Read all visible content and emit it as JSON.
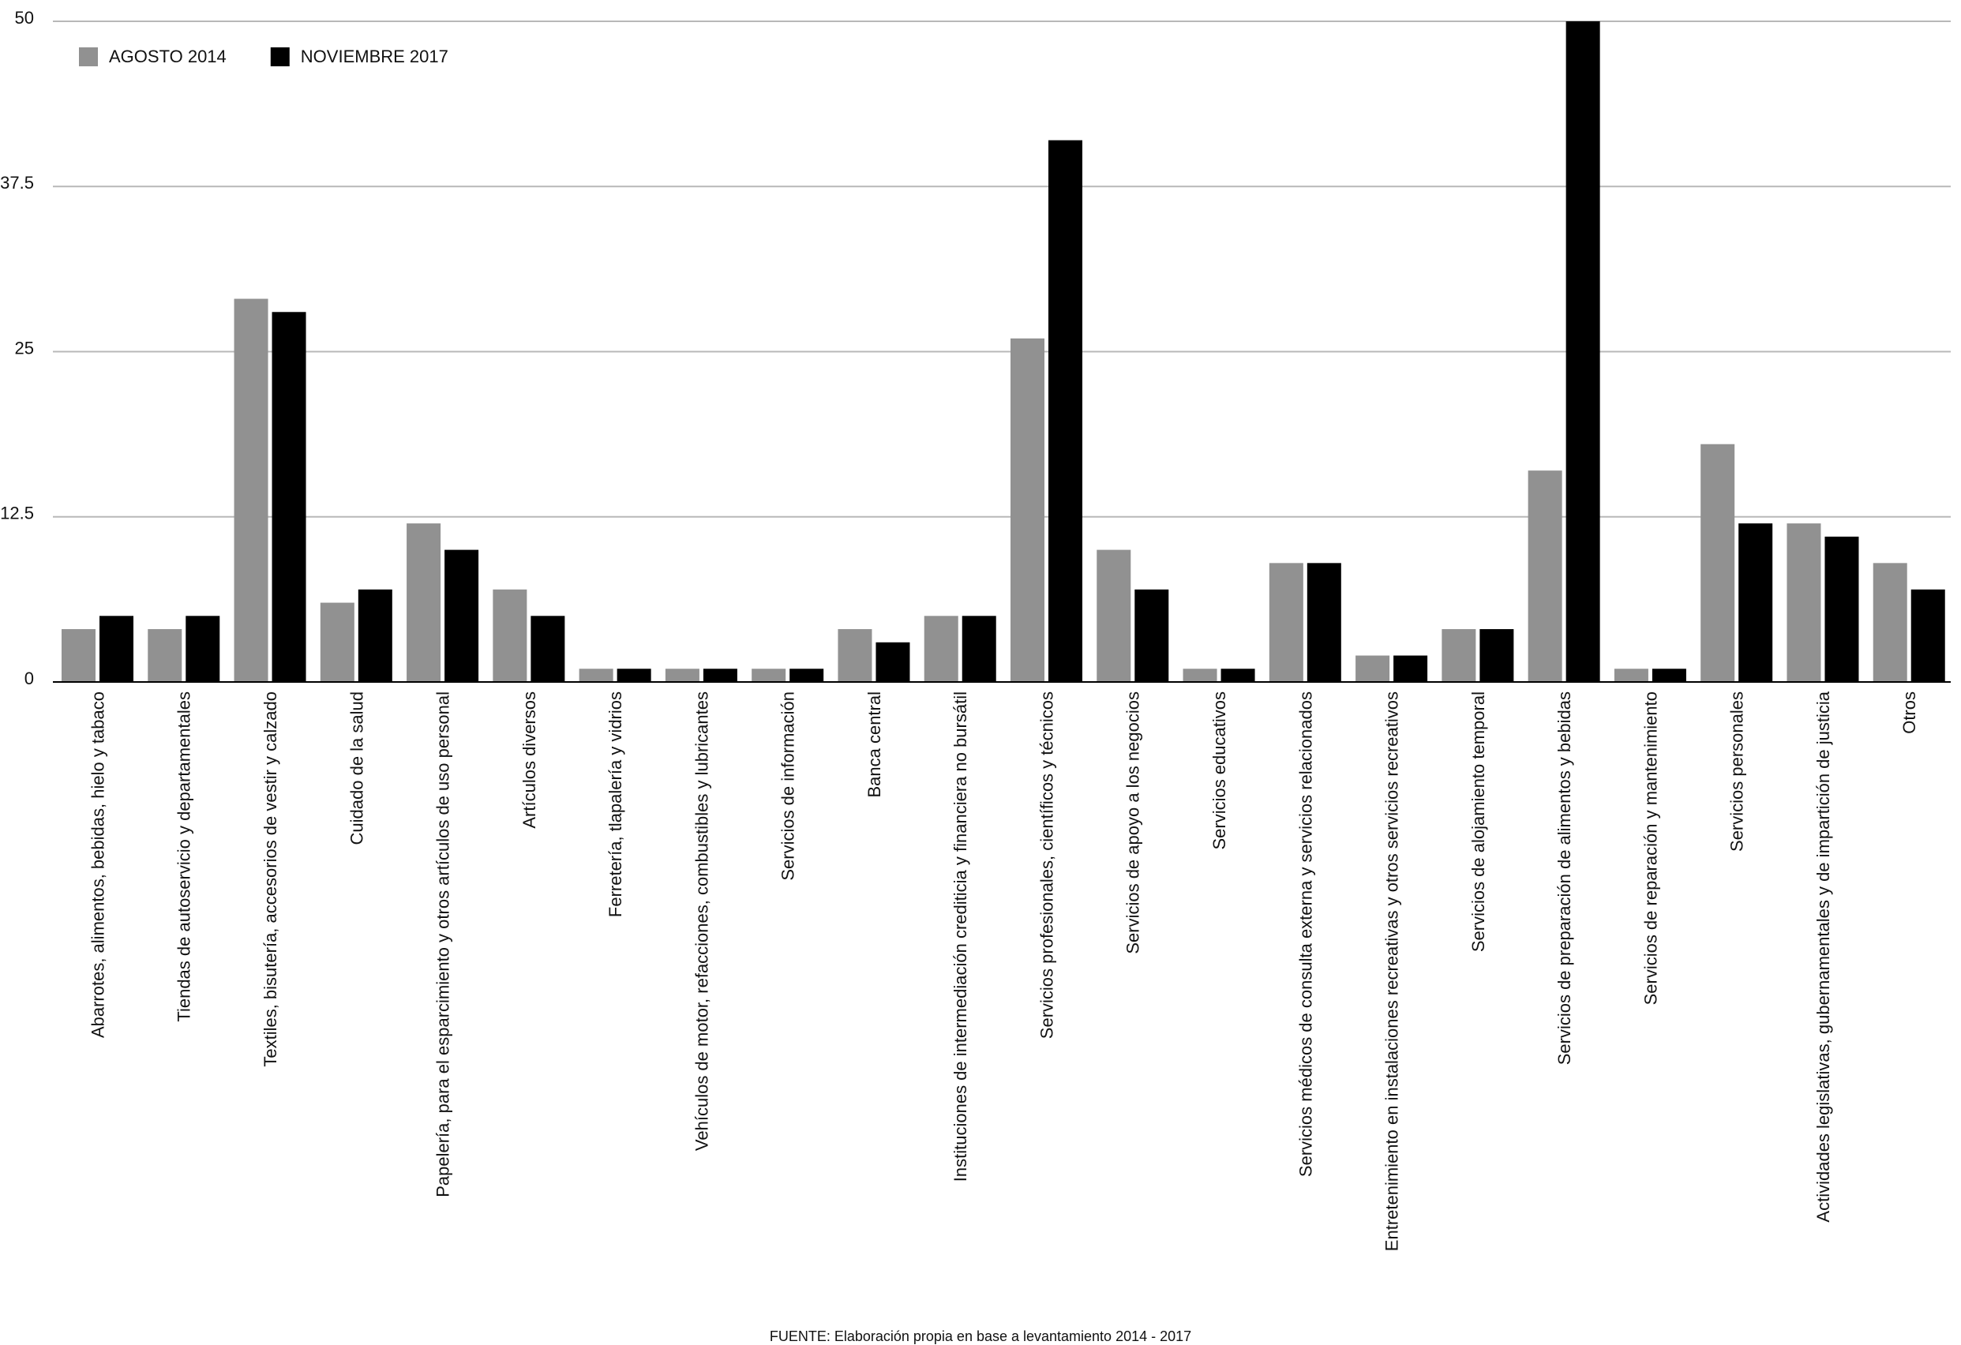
{
  "chart_data": {
    "type": "bar",
    "source": "FUENTE: Elaboración propia en base a levantamiento 2014 - 2017",
    "categories": [
      "Abarrotes, alimentos, bebidas, hielo y tabaco",
      "Tiendas de autoservicio y departamentales",
      "Textiles, bisutería, accesorios de vestir y calzado",
      "Cuidado de la salud",
      "Papelería, para el esparcimiento y otros artículos de uso personal",
      "Artículos diversos",
      "Ferretería, tlapalería y vidrios",
      "Vehículos de motor, refacciones, combustibles y lubricantes",
      "Servicios de información",
      "Banca central",
      "Instituciones de intermediación crediticia y financiera no bursátil",
      "Servicios profesionales, científicos y técnicos",
      "Servicios de apoyo a los negocios",
      "Servicios educativos",
      "Servicios médicos de consulta externa y servicios relacionados",
      "Entretenimiento en instalaciones recreativas y otros servicios recreativos",
      "Servicios de alojamiento temporal",
      "Servicios de preparación de alimentos y bebidas",
      "Servicios de reparación y mantenimiento",
      "Servicios personales",
      "Actividades legislativas, gubernamentales y de impartición de justicia",
      "Otros"
    ],
    "series": [
      {
        "name": "AGOSTO 2014",
        "color": "#919191",
        "values": [
          4,
          4,
          29,
          6,
          12,
          7,
          1,
          1,
          1,
          4,
          5,
          26,
          10,
          1,
          9,
          2,
          4,
          16,
          1,
          18,
          12,
          9
        ]
      },
      {
        "name": "NOVIEMBRE 2017",
        "color": "#000000",
        "values": [
          5,
          5,
          28,
          7,
          10,
          5,
          1,
          1,
          1,
          3,
          5,
          41,
          7,
          1,
          9,
          2,
          4,
          50,
          1,
          12,
          11,
          7
        ]
      }
    ],
    "ylim": [
      0,
      50
    ],
    "yticks": [
      0,
      12.5,
      25,
      37.5,
      50
    ],
    "grid": true,
    "legend": "top-left"
  }
}
